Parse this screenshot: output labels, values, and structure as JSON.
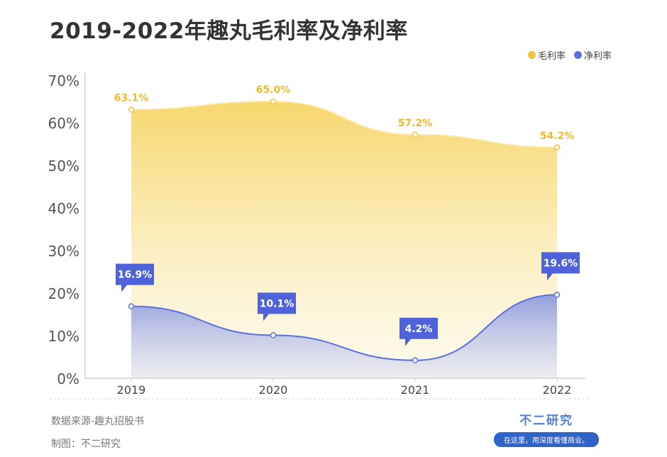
{
  "title": "2019-2022年趣丸毛利率及净利率",
  "legend": [
    {
      "label": "毛利率",
      "color": "#f3c33b"
    },
    {
      "label": "净利率",
      "color": "#5b70e0"
    }
  ],
  "footer": {
    "source": "数据来源-趣丸招股书",
    "maker": "制图：不二研究"
  },
  "brand": {
    "name": "不二研究",
    "tagline": "在这里，用深度看懂商业。"
  },
  "chart_data": {
    "type": "area",
    "categories": [
      "2019",
      "2020",
      "2021",
      "2022"
    ],
    "series": [
      {
        "name": "毛利率",
        "values": [
          63.1,
          65.0,
          57.2,
          54.2
        ],
        "labels": [
          "63.1%",
          "65.0%",
          "57.2%",
          "54.2%"
        ],
        "color": "#f3c33b"
      },
      {
        "name": "净利率",
        "values": [
          16.9,
          10.1,
          4.2,
          19.6
        ],
        "labels": [
          "16.9%",
          "10.1%",
          "4.2%",
          "19.6%"
        ],
        "color": "#5b70e0"
      }
    ],
    "yticks": [
      "0%",
      "10%",
      "20%",
      "30%",
      "40%",
      "50%",
      "60%",
      "70%"
    ],
    "ylim": [
      0,
      70
    ],
    "xlabel": "",
    "ylabel": ""
  }
}
